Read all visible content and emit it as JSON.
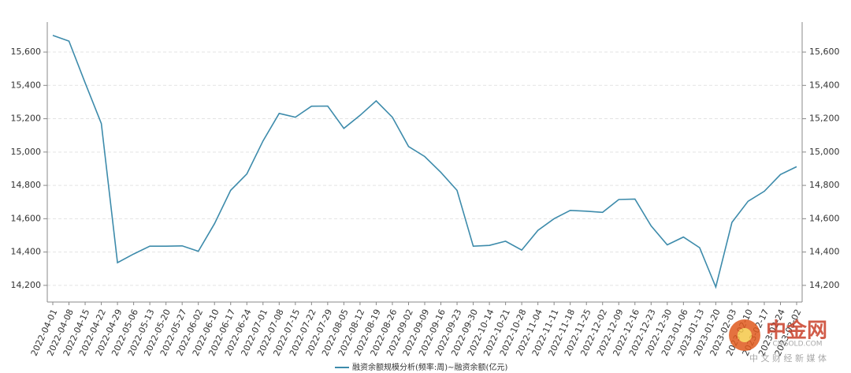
{
  "chart_data": {
    "type": "line",
    "categories": [
      "2022-04-01",
      "2022-04-08",
      "2022-04-15",
      "2022-04-22",
      "2022-04-29",
      "2022-05-06",
      "2022-05-13",
      "2022-05-20",
      "2022-05-27",
      "2022-06-02",
      "2022-06-10",
      "2022-06-17",
      "2022-06-24",
      "2022-07-01",
      "2022-07-08",
      "2022-07-15",
      "2022-07-22",
      "2022-07-29",
      "2022-08-05",
      "2022-08-12",
      "2022-08-19",
      "2022-08-26",
      "2022-09-02",
      "2022-09-09",
      "2022-09-16",
      "2022-09-23",
      "2022-09-30",
      "2022-10-14",
      "2022-10-21",
      "2022-10-28",
      "2022-11-04",
      "2022-11-11",
      "2022-11-18",
      "2022-11-25",
      "2022-12-02",
      "2022-12-09",
      "2022-12-16",
      "2022-12-23",
      "2022-12-30",
      "2023-01-06",
      "2023-01-13",
      "2023-01-20",
      "2023-02-03",
      "2023-02-10",
      "2023-02-17",
      "2023-02-24",
      "2023-03-02"
    ],
    "series": [
      {
        "name": "融资余额规模分析(频率:周)~融资余额(亿元)",
        "color": "#3d8bab",
        "values": [
          15700,
          15666,
          15416,
          15171,
          14336,
          14388,
          14435,
          14435,
          14437,
          14405,
          14570,
          14770,
          14869,
          15067,
          15232,
          15209,
          15275,
          15276,
          15142,
          15220,
          15307,
          15209,
          15033,
          14973,
          14878,
          14770,
          14435,
          14440,
          14465,
          14412,
          14530,
          14600,
          14650,
          14645,
          14638,
          14715,
          14718,
          14557,
          14443,
          14490,
          14426,
          14190,
          14578,
          14705,
          14765,
          14865,
          14912
        ]
      }
    ],
    "ylim": [
      14100,
      15780
    ],
    "yticks": [
      {
        "value": 14200,
        "label": "14,200"
      },
      {
        "value": 14400,
        "label": "14,400"
      },
      {
        "value": 14600,
        "label": "14,600"
      },
      {
        "value": 14800,
        "label": "14,800"
      },
      {
        "value": 15000,
        "label": "15,000"
      },
      {
        "value": 15200,
        "label": "15,200"
      },
      {
        "value": 15400,
        "label": "15,400"
      },
      {
        "value": 15600,
        "label": "15,600"
      }
    ],
    "grid": true,
    "legend": "bottom",
    "watermark": {
      "name": "中金网",
      "site": "CNGOLD.COM",
      "slogan": "中 文 财 经 新 媒 体"
    }
  }
}
